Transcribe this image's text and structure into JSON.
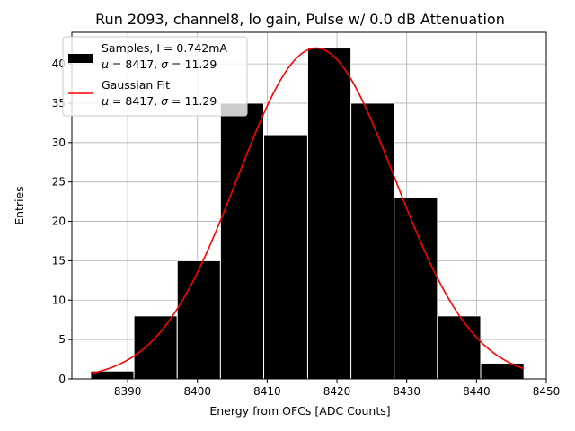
{
  "chart_data": {
    "type": "bar",
    "title": "Run 2093, channel8, lo gain, Pulse w/ 0.0 dB Attenuation",
    "xlabel": "Energy from OFCs [ADC Counts]",
    "ylabel": "Entries",
    "xlim": [
      8382,
      8450
    ],
    "ylim": [
      0,
      44
    ],
    "grid": true,
    "xticks": [
      8390,
      8400,
      8410,
      8420,
      8430,
      8440,
      8450
    ],
    "yticks": [
      0,
      5,
      10,
      15,
      20,
      25,
      30,
      35,
      40
    ],
    "bins": [
      {
        "left": 8384.7,
        "right": 8390.9,
        "value": 1
      },
      {
        "left": 8390.9,
        "right": 8397.1,
        "value": 8
      },
      {
        "left": 8397.1,
        "right": 8403.3,
        "value": 15
      },
      {
        "left": 8403.3,
        "right": 8409.5,
        "value": 35
      },
      {
        "left": 8409.5,
        "right": 8415.8,
        "value": 31
      },
      {
        "left": 8415.8,
        "right": 8422.0,
        "value": 42
      },
      {
        "left": 8422.0,
        "right": 8428.2,
        "value": 35
      },
      {
        "left": 8428.2,
        "right": 8434.4,
        "value": 23
      },
      {
        "left": 8434.4,
        "right": 8440.6,
        "value": 8
      },
      {
        "left": 8440.6,
        "right": 8446.8,
        "value": 2
      }
    ],
    "fit": {
      "type": "gaussian",
      "amplitude": 42,
      "mean": 8417,
      "sigma": 11.29,
      "x_range": [
        8384.7,
        8446.8
      ],
      "color": "#ff0000"
    },
    "legend": {
      "position": "top-left",
      "entries": [
        {
          "kind": "patch",
          "color": "#000000",
          "line1": "Samples, I = 0.742mA",
          "mu_label": "μ",
          "mu_value": " = 8417, ",
          "sigma_label": "σ",
          "sigma_value": " = 11.29"
        },
        {
          "kind": "line",
          "color": "#ff0000",
          "line1": "Gaussian Fit",
          "mu_label": "μ",
          "mu_value": " = 8417, ",
          "sigma_label": "σ",
          "sigma_value": " = 11.29"
        }
      ]
    }
  }
}
